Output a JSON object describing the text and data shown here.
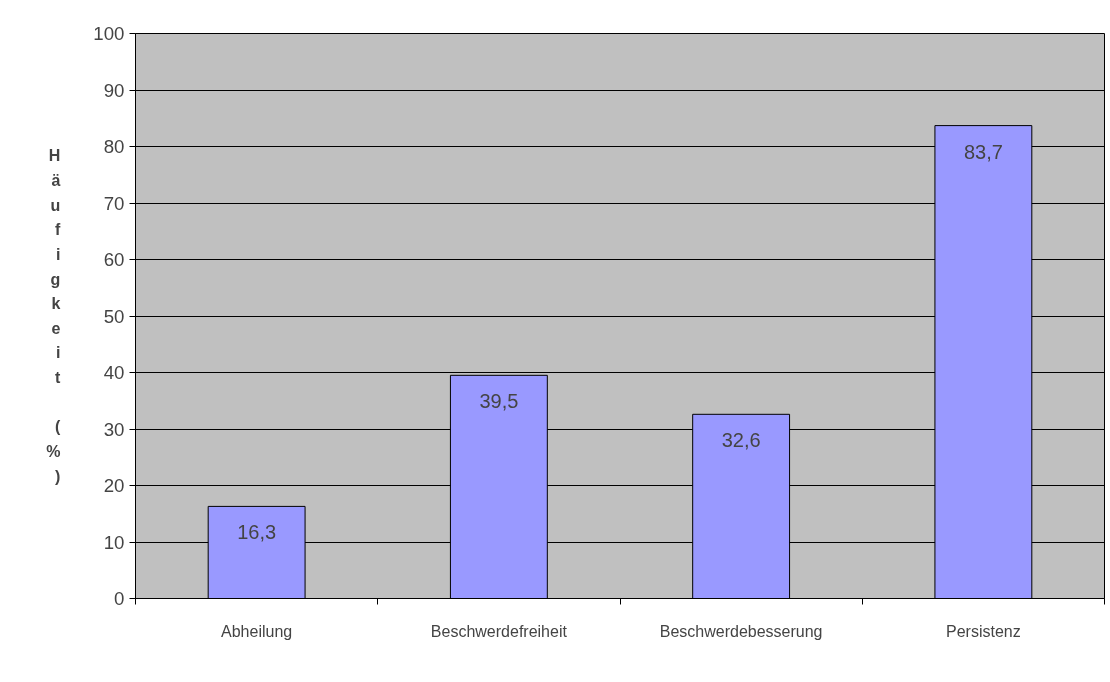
{
  "chart_data": {
    "type": "bar",
    "ylabel": "Häufigkeit (%)",
    "categories": [
      "Abheilung",
      "Beschwerdefreiheit",
      "Beschwerdebesserung",
      "Persistenz"
    ],
    "values": [
      16.3,
      39.5,
      32.6,
      83.7
    ],
    "value_labels": [
      "16,3",
      "39,5",
      "32,6",
      "83,7"
    ],
    "color": "#9999ff",
    "ylim": [
      0,
      100
    ],
    "yticks": [
      0,
      10,
      20,
      30,
      40,
      50,
      60,
      70,
      80,
      90,
      100
    ],
    "grid": "y"
  }
}
